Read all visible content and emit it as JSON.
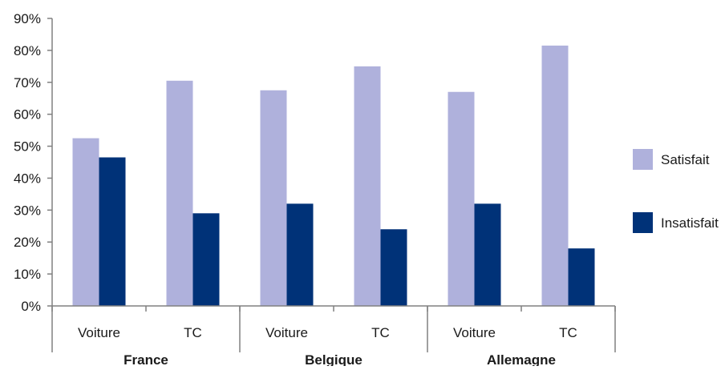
{
  "chart_data": {
    "type": "bar",
    "categories": [
      {
        "group": "France",
        "label": "Voiture"
      },
      {
        "group": "France",
        "label": "TC"
      },
      {
        "group": "Belgique",
        "label": "Voiture"
      },
      {
        "group": "Belgique",
        "label": "TC"
      },
      {
        "group": "Allemagne",
        "label": "Voiture"
      },
      {
        "group": "Allemagne",
        "label": "TC"
      }
    ],
    "groups": [
      "France",
      "Belgique",
      "Allemagne"
    ],
    "series": [
      {
        "name": "Satisfait",
        "color": "#afb1dc",
        "values": [
          52.5,
          70.5,
          67.5,
          75.0,
          67.0,
          81.5
        ]
      },
      {
        "name": "Insatisfait",
        "color": "#003278",
        "values": [
          46.5,
          29.0,
          32.0,
          24.0,
          32.0,
          18.0
        ]
      }
    ],
    "ylim": [
      0,
      90
    ],
    "yticks": [
      0,
      10,
      20,
      30,
      40,
      50,
      60,
      70,
      80,
      90
    ],
    "ytick_labels": [
      "0%",
      "10%",
      "20%",
      "30%",
      "40%",
      "50%",
      "60%",
      "70%",
      "80%",
      "90%"
    ],
    "grid": false,
    "legend_position": "right",
    "title": "",
    "xlabel": "",
    "ylabel": ""
  }
}
